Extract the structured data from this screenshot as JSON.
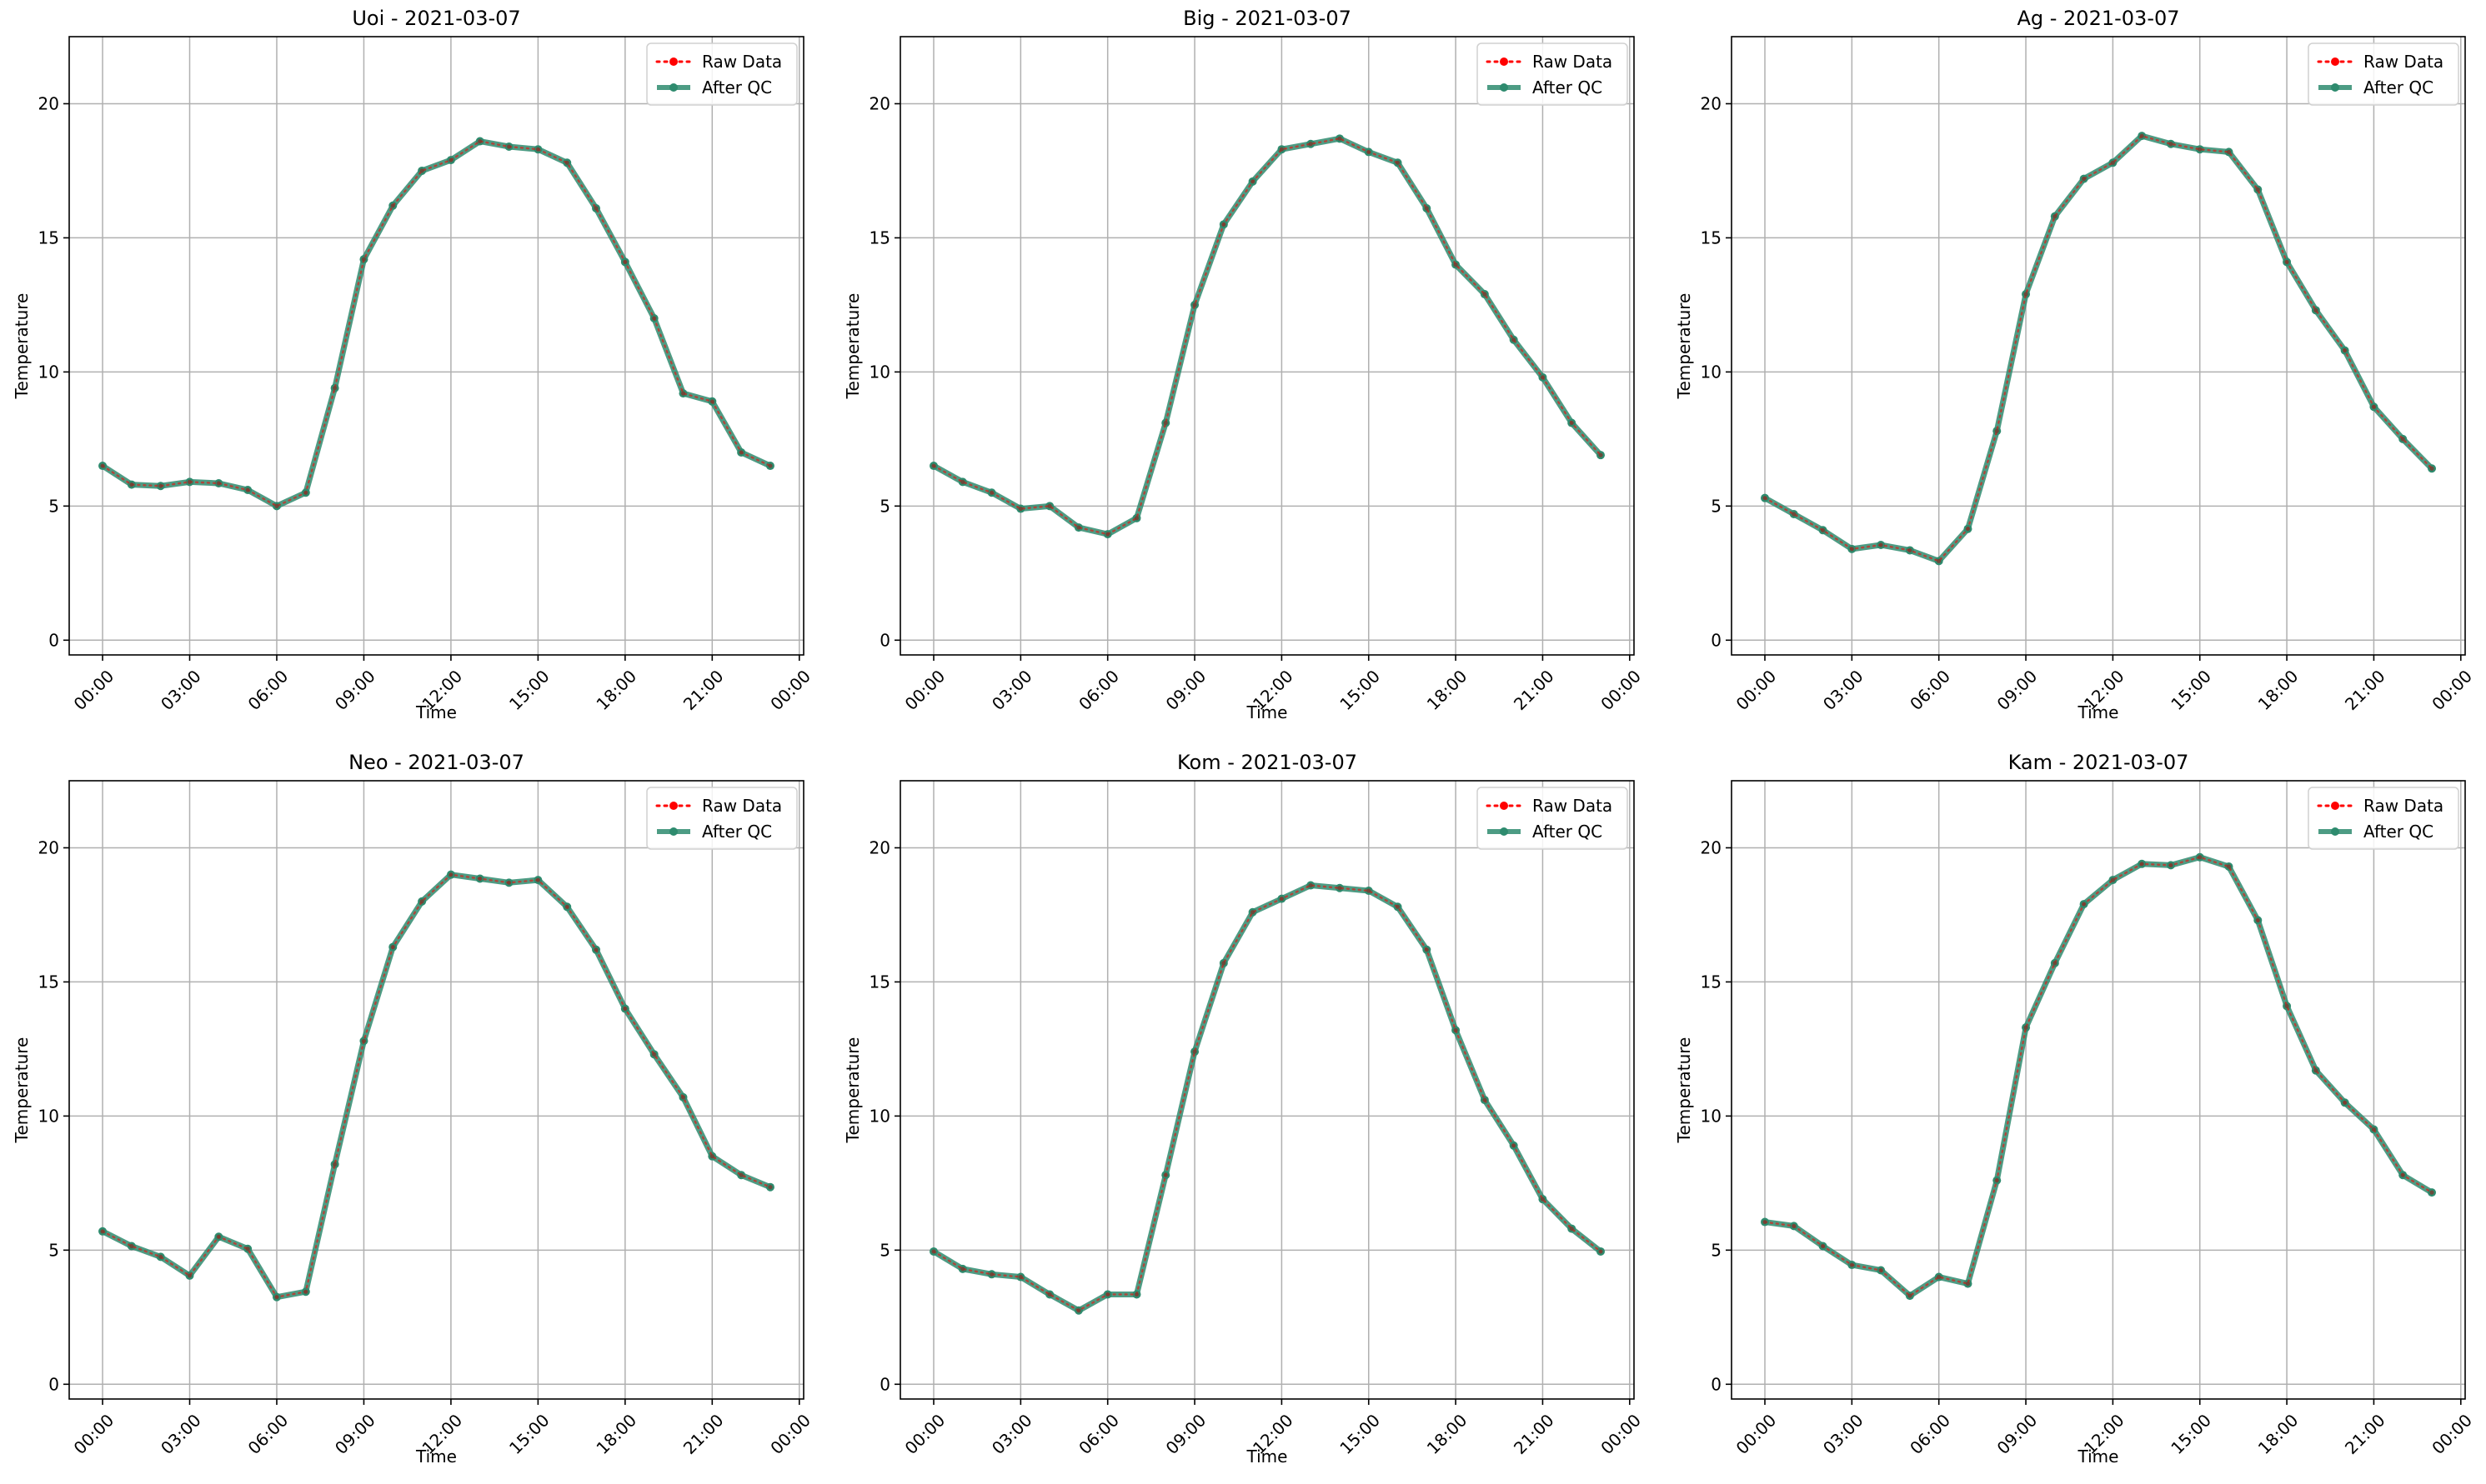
{
  "colors": {
    "raw": "#ff0000",
    "qc": "#2e8b6e",
    "grid": "#b0b0b0",
    "axis": "#000000"
  },
  "legend": {
    "placement": "top-right",
    "raw_label": "Raw Data",
    "qc_label": "After QC"
  },
  "chart_data": [
    {
      "type": "line",
      "title": "Uoi - 2021-03-07",
      "xlabel": "Time",
      "ylabel": "Temperature",
      "x": [
        "00:00",
        "01:00",
        "02:00",
        "03:00",
        "04:00",
        "05:00",
        "06:00",
        "07:00",
        "08:00",
        "09:00",
        "10:00",
        "11:00",
        "12:00",
        "13:00",
        "14:00",
        "15:00",
        "16:00",
        "17:00",
        "18:00",
        "19:00",
        "20:00",
        "21:00",
        "22:00",
        "23:00"
      ],
      "xticks": [
        "00:00",
        "03:00",
        "06:00",
        "09:00",
        "12:00",
        "15:00",
        "18:00",
        "21:00",
        "00:00"
      ],
      "yticks": [
        0,
        5,
        10,
        15,
        20
      ],
      "ylim": [
        0,
        22.5
      ],
      "grid": true,
      "series": [
        {
          "name": "Raw Data",
          "values": [
            6.5,
            5.8,
            5.75,
            5.9,
            5.85,
            5.6,
            5.0,
            5.5,
            9.4,
            14.2,
            16.2,
            17.5,
            17.9,
            18.6,
            18.4,
            18.3,
            17.8,
            16.1,
            14.1,
            12.0,
            9.2,
            8.9,
            7.0,
            6.5
          ]
        },
        {
          "name": "After QC",
          "values": [
            6.5,
            5.8,
            5.75,
            5.9,
            5.85,
            5.6,
            5.0,
            5.5,
            9.4,
            14.2,
            16.2,
            17.5,
            17.9,
            18.6,
            18.4,
            18.3,
            17.8,
            16.1,
            14.1,
            12.0,
            9.2,
            8.9,
            7.0,
            6.5
          ]
        }
      ]
    },
    {
      "type": "line",
      "title": "Big - 2021-03-07",
      "xlabel": "Time",
      "ylabel": "Temperature",
      "x": [
        "00:00",
        "01:00",
        "02:00",
        "03:00",
        "04:00",
        "05:00",
        "06:00",
        "07:00",
        "08:00",
        "09:00",
        "10:00",
        "11:00",
        "12:00",
        "13:00",
        "14:00",
        "15:00",
        "16:00",
        "17:00",
        "18:00",
        "19:00",
        "20:00",
        "21:00",
        "22:00",
        "23:00"
      ],
      "xticks": [
        "00:00",
        "03:00",
        "06:00",
        "09:00",
        "12:00",
        "15:00",
        "18:00",
        "21:00",
        "00:00"
      ],
      "yticks": [
        0,
        5,
        10,
        15,
        20
      ],
      "ylim": [
        0,
        22.5
      ],
      "grid": true,
      "series": [
        {
          "name": "Raw Data",
          "values": [
            6.5,
            5.9,
            5.5,
            4.9,
            5.0,
            4.2,
            3.95,
            4.55,
            8.1,
            12.5,
            15.5,
            17.1,
            18.3,
            18.5,
            18.7,
            18.2,
            17.8,
            16.1,
            14.0,
            12.9,
            11.2,
            9.8,
            8.1,
            6.9
          ]
        },
        {
          "name": "After QC",
          "values": [
            6.5,
            5.9,
            5.5,
            4.9,
            5.0,
            4.2,
            3.95,
            4.55,
            8.1,
            12.5,
            15.5,
            17.1,
            18.3,
            18.5,
            18.7,
            18.2,
            17.8,
            16.1,
            14.0,
            12.9,
            11.2,
            9.8,
            8.1,
            6.9
          ]
        }
      ]
    },
    {
      "type": "line",
      "title": "Ag - 2021-03-07",
      "xlabel": "Time",
      "ylabel": "Temperature",
      "x": [
        "00:00",
        "01:00",
        "02:00",
        "03:00",
        "04:00",
        "05:00",
        "06:00",
        "07:00",
        "08:00",
        "09:00",
        "10:00",
        "11:00",
        "12:00",
        "13:00",
        "14:00",
        "15:00",
        "16:00",
        "17:00",
        "18:00",
        "19:00",
        "20:00",
        "21:00",
        "22:00",
        "23:00"
      ],
      "xticks": [
        "00:00",
        "03:00",
        "06:00",
        "09:00",
        "12:00",
        "15:00",
        "18:00",
        "21:00",
        "00:00"
      ],
      "yticks": [
        0,
        5,
        10,
        15,
        20
      ],
      "ylim": [
        0,
        22.5
      ],
      "grid": true,
      "series": [
        {
          "name": "Raw Data",
          "values": [
            5.3,
            4.7,
            4.1,
            3.4,
            3.55,
            3.35,
            2.95,
            4.15,
            7.8,
            12.9,
            15.8,
            17.2,
            17.8,
            18.8,
            18.5,
            18.3,
            18.2,
            16.8,
            14.1,
            12.3,
            10.8,
            8.7,
            7.5,
            6.4
          ]
        },
        {
          "name": "After QC",
          "values": [
            5.3,
            4.7,
            4.1,
            3.4,
            3.55,
            3.35,
            2.95,
            4.15,
            7.8,
            12.9,
            15.8,
            17.2,
            17.8,
            18.8,
            18.5,
            18.3,
            18.2,
            16.8,
            14.1,
            12.3,
            10.8,
            8.7,
            7.5,
            6.4
          ]
        }
      ]
    },
    {
      "type": "line",
      "title": "Neo - 2021-03-07",
      "xlabel": "Time",
      "ylabel": "Temperature",
      "x": [
        "00:00",
        "01:00",
        "02:00",
        "03:00",
        "04:00",
        "05:00",
        "06:00",
        "07:00",
        "08:00",
        "09:00",
        "10:00",
        "11:00",
        "12:00",
        "13:00",
        "14:00",
        "15:00",
        "16:00",
        "17:00",
        "18:00",
        "19:00",
        "20:00",
        "21:00",
        "22:00",
        "23:00"
      ],
      "xticks": [
        "00:00",
        "03:00",
        "06:00",
        "09:00",
        "12:00",
        "15:00",
        "18:00",
        "21:00",
        "00:00"
      ],
      "yticks": [
        0,
        5,
        10,
        15,
        20
      ],
      "ylim": [
        0,
        22.5
      ],
      "grid": true,
      "series": [
        {
          "name": "Raw Data",
          "values": [
            5.7,
            5.15,
            4.75,
            4.05,
            5.5,
            5.05,
            3.25,
            3.45,
            8.2,
            12.8,
            16.3,
            18.0,
            19.0,
            18.85,
            18.7,
            18.8,
            17.8,
            16.2,
            14.0,
            12.3,
            10.7,
            8.5,
            7.8,
            7.35
          ]
        },
        {
          "name": "After QC",
          "values": [
            5.7,
            5.15,
            4.75,
            4.05,
            5.5,
            5.05,
            3.25,
            3.45,
            8.2,
            12.8,
            16.3,
            18.0,
            19.0,
            18.85,
            18.7,
            18.8,
            17.8,
            16.2,
            14.0,
            12.3,
            10.7,
            8.5,
            7.8,
            7.35
          ]
        }
      ]
    },
    {
      "type": "line",
      "title": "Kom - 2021-03-07",
      "xlabel": "Time",
      "ylabel": "Temperature",
      "x": [
        "00:00",
        "01:00",
        "02:00",
        "03:00",
        "04:00",
        "05:00",
        "06:00",
        "07:00",
        "08:00",
        "09:00",
        "10:00",
        "11:00",
        "12:00",
        "13:00",
        "14:00",
        "15:00",
        "16:00",
        "17:00",
        "18:00",
        "19:00",
        "20:00",
        "21:00",
        "22:00",
        "23:00"
      ],
      "xticks": [
        "00:00",
        "03:00",
        "06:00",
        "09:00",
        "12:00",
        "15:00",
        "18:00",
        "21:00",
        "00:00"
      ],
      "yticks": [
        0,
        5,
        10,
        15,
        20
      ],
      "ylim": [
        0,
        22.5
      ],
      "grid": true,
      "series": [
        {
          "name": "Raw Data",
          "values": [
            4.95,
            4.3,
            4.1,
            4.0,
            3.35,
            2.75,
            3.35,
            3.35,
            7.8,
            12.4,
            15.7,
            17.6,
            18.1,
            18.6,
            18.5,
            18.4,
            17.8,
            16.2,
            13.2,
            10.6,
            8.9,
            6.9,
            5.8,
            4.95
          ]
        },
        {
          "name": "After QC",
          "values": [
            4.95,
            4.3,
            4.1,
            4.0,
            3.35,
            2.75,
            3.35,
            3.35,
            7.8,
            12.4,
            15.7,
            17.6,
            18.1,
            18.6,
            18.5,
            18.4,
            17.8,
            16.2,
            13.2,
            10.6,
            8.9,
            6.9,
            5.8,
            4.95
          ]
        }
      ]
    },
    {
      "type": "line",
      "title": "Kam - 2021-03-07",
      "xlabel": "Time",
      "ylabel": "Temperature",
      "x": [
        "00:00",
        "01:00",
        "02:00",
        "03:00",
        "04:00",
        "05:00",
        "06:00",
        "07:00",
        "08:00",
        "09:00",
        "10:00",
        "11:00",
        "12:00",
        "13:00",
        "14:00",
        "15:00",
        "16:00",
        "17:00",
        "18:00",
        "19:00",
        "20:00",
        "21:00",
        "22:00",
        "23:00"
      ],
      "xticks": [
        "00:00",
        "03:00",
        "06:00",
        "09:00",
        "12:00",
        "15:00",
        "18:00",
        "21:00",
        "00:00"
      ],
      "yticks": [
        0,
        5,
        10,
        15,
        20
      ],
      "ylim": [
        0,
        22.5
      ],
      "grid": true,
      "series": [
        {
          "name": "Raw Data",
          "values": [
            6.05,
            5.9,
            5.15,
            4.45,
            4.25,
            3.3,
            4.0,
            3.75,
            7.6,
            13.3,
            15.7,
            17.9,
            18.8,
            19.4,
            19.35,
            19.65,
            19.3,
            17.3,
            14.1,
            11.7,
            10.5,
            9.5,
            7.8,
            7.15
          ]
        },
        {
          "name": "After QC",
          "values": [
            6.05,
            5.9,
            5.15,
            4.45,
            4.25,
            3.3,
            4.0,
            3.75,
            7.6,
            13.3,
            15.7,
            17.9,
            18.8,
            19.4,
            19.35,
            19.65,
            19.3,
            17.3,
            14.1,
            11.7,
            10.5,
            9.5,
            7.8,
            7.15
          ]
        }
      ]
    }
  ]
}
